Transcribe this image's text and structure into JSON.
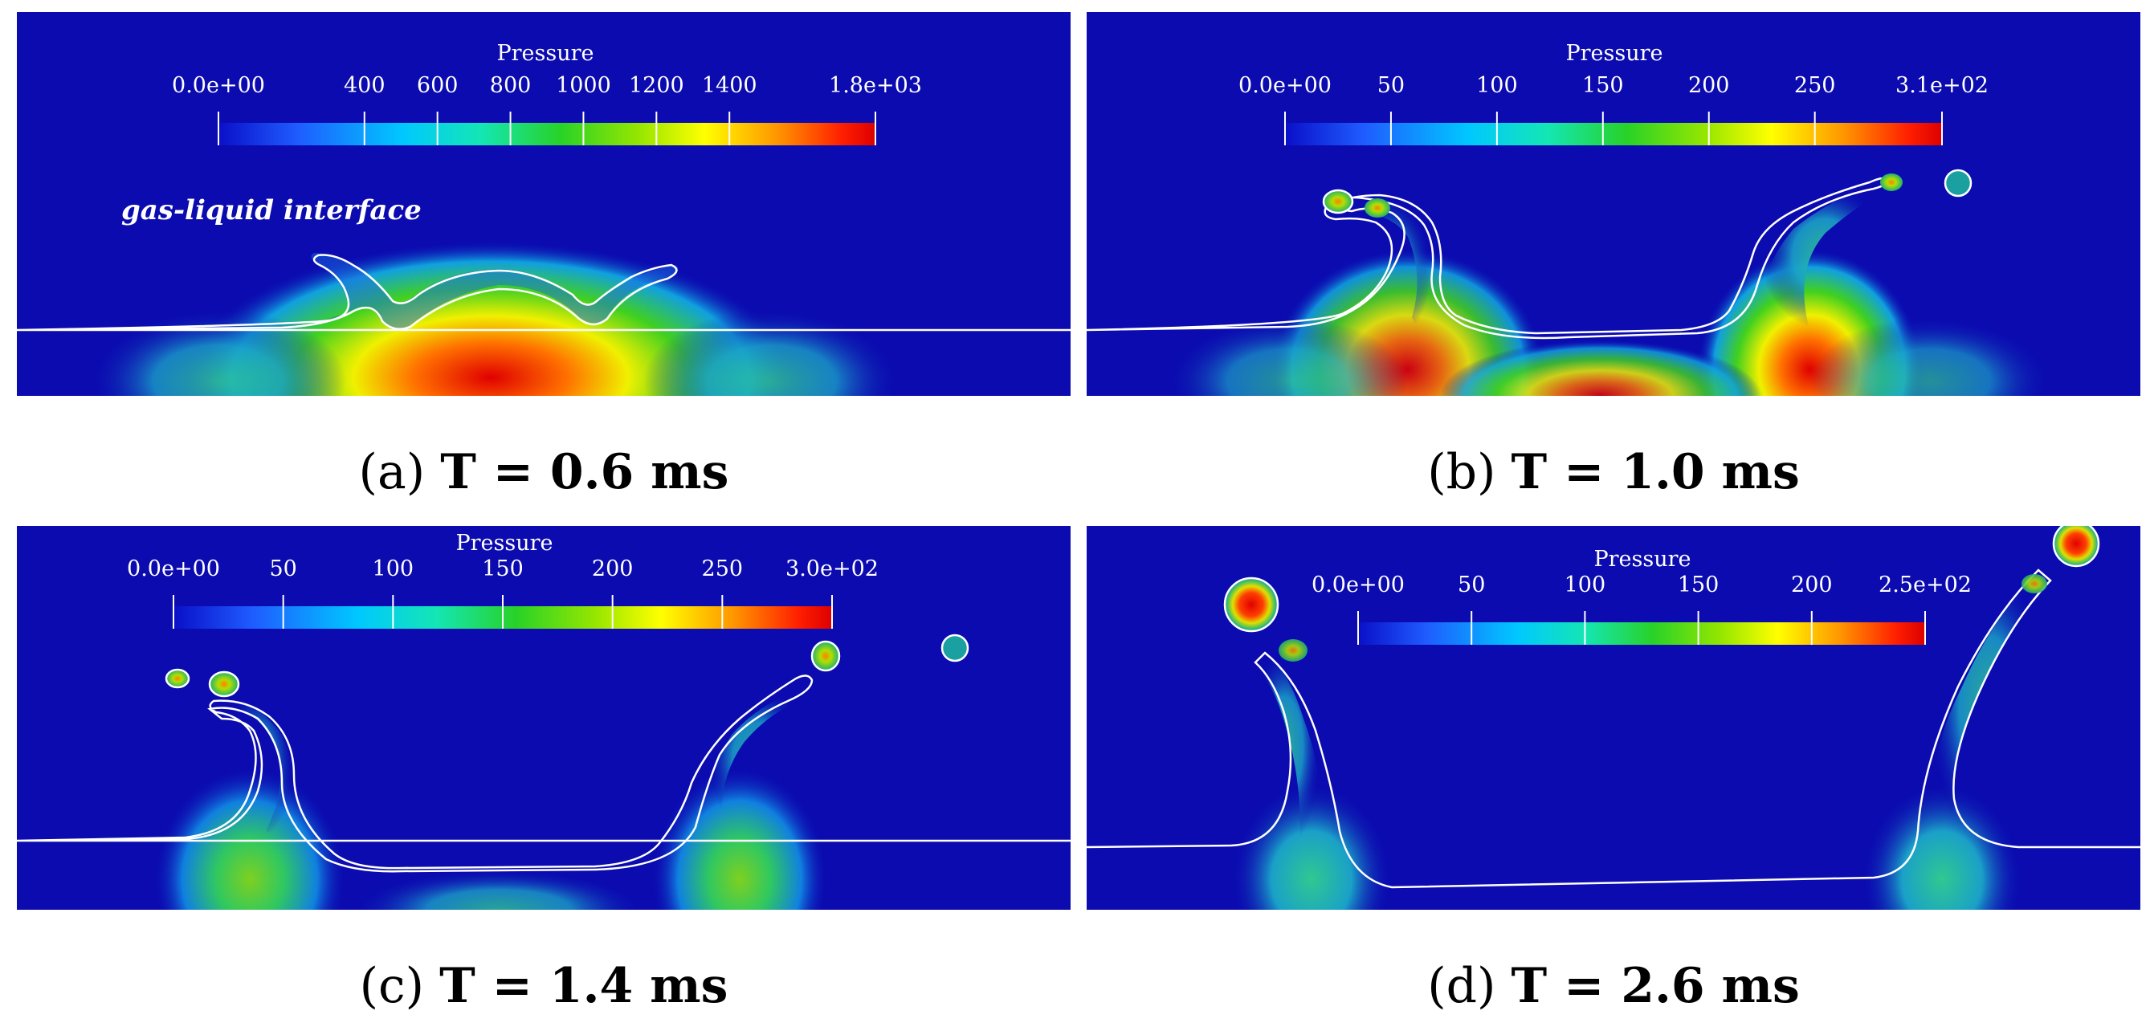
{
  "figure": {
    "colormap": [
      "#0a0fc8",
      "#1f5cff",
      "#00c8ff",
      "#14e6b4",
      "#28d228",
      "#96e600",
      "#ffff00",
      "#ff9600",
      "#ff1e00",
      "#dc0000"
    ],
    "background_color": "#0b0bb0",
    "interface_color": "#ffffff",
    "annotation": "gas-liquid interface",
    "panels": [
      {
        "id": "a",
        "caption_label": "(a)",
        "caption_time": "T = 0.6 ms",
        "colorbar": {
          "title": "Pressure",
          "ticks": [
            "0.0e+00",
            "400",
            "600",
            "800",
            "1000",
            "1200",
            "1400",
            "1.8e+03"
          ],
          "tick_values": [
            0,
            400,
            600,
            800,
            1000,
            1200,
            1400,
            1800
          ],
          "range": [
            0,
            1800
          ]
        }
      },
      {
        "id": "b",
        "caption_label": "(b)",
        "caption_time": "T = 1.0 ms",
        "colorbar": {
          "title": "Pressure",
          "ticks": [
            "0.0e+00",
            "50",
            "100",
            "150",
            "200",
            "250",
            "3.1e+02"
          ],
          "tick_values": [
            0,
            50,
            100,
            150,
            200,
            250,
            310
          ],
          "range": [
            0,
            310
          ]
        }
      },
      {
        "id": "c",
        "caption_label": "(c)",
        "caption_time": "T = 1.4 ms",
        "colorbar": {
          "title": "Pressure",
          "ticks": [
            "0.0e+00",
            "50",
            "100",
            "150",
            "200",
            "250",
            "3.0e+02"
          ],
          "tick_values": [
            0,
            50,
            100,
            150,
            200,
            250,
            300
          ],
          "range": [
            0,
            300
          ]
        }
      },
      {
        "id": "d",
        "caption_label": "(d)",
        "caption_time": "T = 2.6 ms",
        "colorbar": {
          "title": "Pressure",
          "ticks": [
            "0.0e+00",
            "50",
            "100",
            "150",
            "200",
            "2.5e+02"
          ],
          "tick_values": [
            0,
            50,
            100,
            150,
            200,
            250
          ],
          "range": [
            0,
            250
          ]
        }
      }
    ]
  }
}
